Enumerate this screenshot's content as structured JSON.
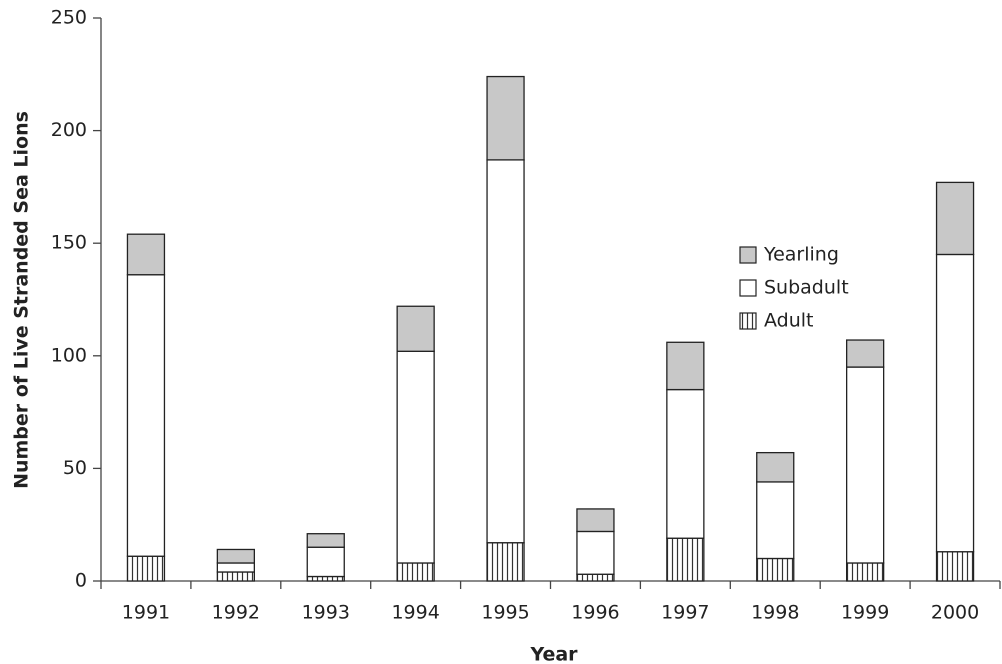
{
  "chart_data": {
    "type": "stacked_bar",
    "x_label": "Year",
    "y_label": "Number of Live Stranded Sea Lions",
    "categories": [
      "1991",
      "1992",
      "1993",
      "1994",
      "1995",
      "1996",
      "1997",
      "1998",
      "1999",
      "2000"
    ],
    "series": [
      {
        "name": "Adult",
        "color": "#ffffff",
        "pattern": "vertical-lines",
        "values": [
          11,
          4,
          2,
          8,
          17,
          3,
          19,
          10,
          8,
          13
        ]
      },
      {
        "name": "Subadult",
        "color": "#ffffff",
        "values": [
          125,
          4,
          13,
          94,
          170,
          19,
          66,
          34,
          87,
          132
        ]
      },
      {
        "name": "Yearling",
        "color": "#c8c8c8",
        "values": [
          18,
          6,
          6,
          20,
          37,
          10,
          21,
          13,
          12,
          32
        ]
      }
    ],
    "ylim": [
      0,
      250
    ],
    "yticks": [
      0,
      50,
      100,
      150,
      200,
      250
    ],
    "grid": false,
    "legend": "right"
  }
}
